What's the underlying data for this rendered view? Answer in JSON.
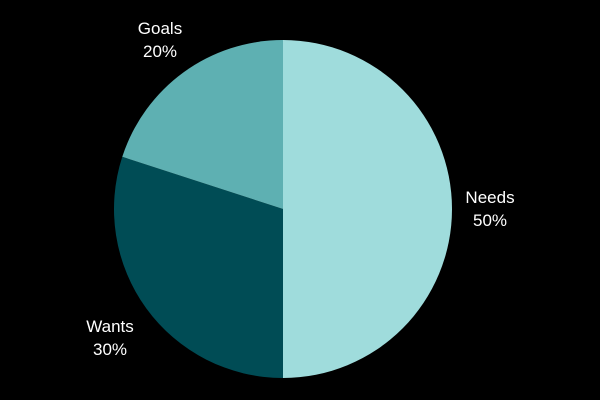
{
  "chart_data": {
    "type": "pie",
    "slices": [
      {
        "label": "Needs",
        "value": 50,
        "value_label": "50%",
        "color": "#9fdcdc"
      },
      {
        "label": "Wants",
        "value": 30,
        "value_label": "30%",
        "color": "#004c55"
      },
      {
        "label": "Goals",
        "value": 20,
        "value_label": "20%",
        "color": "#5eb0b2"
      }
    ],
    "start": "top",
    "direction": "clockwise",
    "background": "#000000"
  }
}
